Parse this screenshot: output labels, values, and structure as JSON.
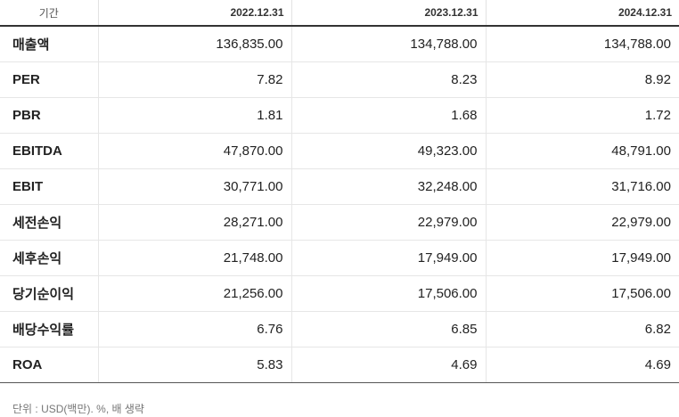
{
  "table": {
    "header_label": "기간",
    "periods": [
      "2022.12.31",
      "2023.12.31",
      "2024.12.31"
    ],
    "rows": [
      {
        "label": "매출액",
        "values": [
          "136,835.00",
          "134,788.00",
          "134,788.00"
        ]
      },
      {
        "label": "PER",
        "values": [
          "7.82",
          "8.23",
          "8.92"
        ]
      },
      {
        "label": "PBR",
        "values": [
          "1.81",
          "1.68",
          "1.72"
        ]
      },
      {
        "label": "EBITDA",
        "values": [
          "47,870.00",
          "49,323.00",
          "48,791.00"
        ]
      },
      {
        "label": "EBIT",
        "values": [
          "30,771.00",
          "32,248.00",
          "31,716.00"
        ]
      },
      {
        "label": "세전손익",
        "values": [
          "28,271.00",
          "22,979.00",
          "22,979.00"
        ]
      },
      {
        "label": "세후손익",
        "values": [
          "21,748.00",
          "17,949.00",
          "17,949.00"
        ]
      },
      {
        "label": "당기순이익",
        "values": [
          "21,256.00",
          "17,506.00",
          "17,506.00"
        ]
      },
      {
        "label": "배당수익률",
        "values": [
          "6.76",
          "6.85",
          "6.82"
        ]
      },
      {
        "label": "ROA",
        "values": [
          "5.83",
          "4.69",
          "4.69"
        ]
      }
    ]
  },
  "footer": {
    "unit_note": "단위 : USD(백만). %, 배 생략"
  }
}
